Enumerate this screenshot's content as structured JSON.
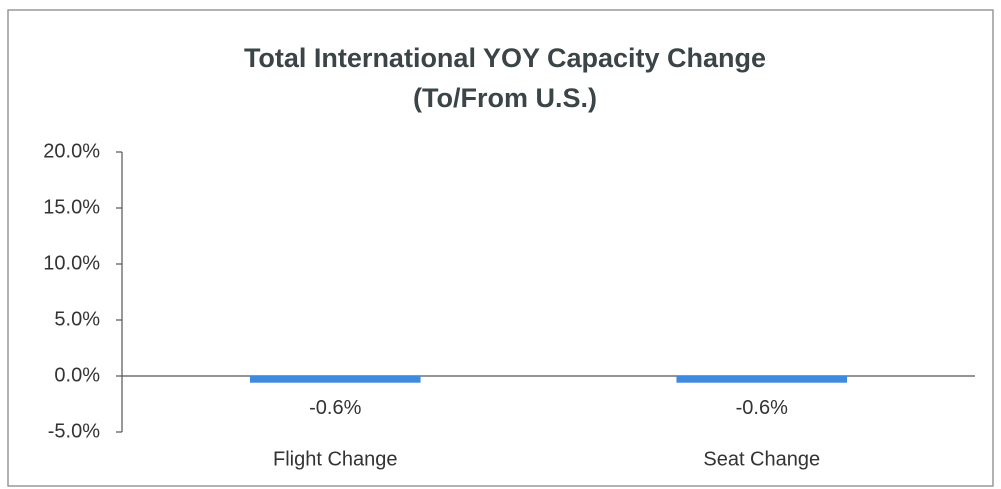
{
  "chart_data": {
    "type": "bar",
    "title": "Total International YOY Capacity Change",
    "subtitle": "(To/From U.S.)",
    "categories": [
      "Flight Change",
      "Seat Change"
    ],
    "values": [
      -0.6,
      -0.6
    ],
    "value_labels": [
      "-0.6%",
      "-0.6%"
    ],
    "color": "#3d8ade",
    "ylim": [
      -5,
      20
    ],
    "yticks": [
      {
        "value": -5,
        "label": "-5.0%"
      },
      {
        "value": 0,
        "label": "0.0%"
      },
      {
        "value": 5,
        "label": "5.0%"
      },
      {
        "value": 10,
        "label": "10.0%"
      },
      {
        "value": 15,
        "label": "15.0%"
      },
      {
        "value": 20,
        "label": "20.0%"
      }
    ],
    "grid": false
  }
}
